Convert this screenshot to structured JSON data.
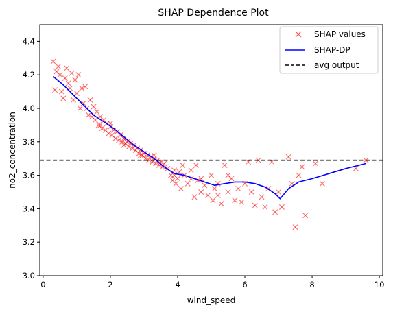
{
  "chart_data": {
    "type": "scatter",
    "title": "SHAP Dependence Plot",
    "xlabel": "wind_speed",
    "ylabel": "no2_concentration",
    "xlim": [
      -0.1,
      10.1
    ],
    "ylim": [
      3.0,
      4.5
    ],
    "x_ticks": [
      0,
      2,
      4,
      6,
      8,
      10
    ],
    "y_ticks": [
      3.0,
      3.2,
      3.4,
      3.6,
      3.8,
      4.0,
      4.2,
      4.4
    ],
    "x_tick_labels": [
      "0",
      "2",
      "4",
      "6",
      "8",
      "10"
    ],
    "y_tick_labels": [
      "3.0",
      "3.2",
      "3.4",
      "3.6",
      "3.8",
      "4.0",
      "4.2",
      "4.4"
    ],
    "grid": false,
    "legend_position": "top-right",
    "legend": [
      "SHAP values",
      "SHAP-DP",
      "avg output"
    ],
    "colors": {
      "scatter": "#ff0000",
      "line": "#0000ff",
      "avg": "#000000"
    },
    "series": [
      {
        "name": "SHAP values",
        "type": "scatter",
        "marker": "x",
        "points": [
          [
            0.3,
            4.28
          ],
          [
            0.35,
            4.11
          ],
          [
            0.4,
            4.22
          ],
          [
            0.45,
            4.25
          ],
          [
            0.5,
            4.2
          ],
          [
            0.55,
            4.1
          ],
          [
            0.6,
            4.06
          ],
          [
            0.65,
            4.18
          ],
          [
            0.7,
            4.24
          ],
          [
            0.75,
            4.15
          ],
          [
            0.8,
            4.12
          ],
          [
            0.85,
            4.21
          ],
          [
            0.9,
            4.05
          ],
          [
            0.95,
            4.17
          ],
          [
            1.0,
            4.09
          ],
          [
            1.05,
            4.2
          ],
          [
            1.1,
            4.0
          ],
          [
            1.15,
            4.12
          ],
          [
            1.2,
            4.03
          ],
          [
            1.25,
            4.13
          ],
          [
            1.3,
            4.0
          ],
          [
            1.35,
            3.96
          ],
          [
            1.4,
            4.05
          ],
          [
            1.45,
            3.95
          ],
          [
            1.5,
            4.01
          ],
          [
            1.55,
            3.93
          ],
          [
            1.6,
            3.98
          ],
          [
            1.65,
            3.9
          ],
          [
            1.7,
            3.95
          ],
          [
            1.75,
            3.88
          ],
          [
            1.8,
            3.93
          ],
          [
            1.85,
            3.87
          ],
          [
            1.9,
            3.91
          ],
          [
            1.95,
            3.85
          ],
          [
            2.0,
            3.89
          ],
          [
            2.05,
            3.84
          ],
          [
            2.1,
            3.87
          ],
          [
            2.15,
            3.82
          ],
          [
            2.2,
            3.86
          ],
          [
            2.25,
            3.81
          ],
          [
            2.3,
            3.84
          ],
          [
            2.35,
            3.8
          ],
          [
            2.4,
            3.82
          ],
          [
            2.45,
            3.79
          ],
          [
            2.5,
            3.8
          ],
          [
            2.55,
            3.77
          ],
          [
            2.6,
            3.79
          ],
          [
            2.65,
            3.76
          ],
          [
            2.7,
            3.78
          ],
          [
            2.75,
            3.75
          ],
          [
            2.8,
            3.76
          ],
          [
            2.85,
            3.73
          ],
          [
            2.9,
            3.75
          ],
          [
            2.95,
            3.72
          ],
          [
            3.0,
            3.73
          ],
          [
            3.05,
            3.7
          ],
          [
            3.1,
            3.72
          ],
          [
            3.15,
            3.69
          ],
          [
            3.2,
            3.71
          ],
          [
            3.25,
            3.68
          ],
          [
            3.3,
            3.7
          ],
          [
            3.35,
            3.67
          ],
          [
            3.4,
            3.69
          ],
          [
            3.45,
            3.66
          ],
          [
            3.5,
            3.68
          ],
          [
            3.55,
            3.65
          ],
          [
            3.6,
            3.67
          ],
          [
            3.7,
            3.64
          ],
          [
            3.8,
            3.6
          ],
          [
            3.85,
            3.57
          ],
          [
            3.9,
            3.63
          ],
          [
            3.95,
            3.55
          ],
          [
            4.0,
            3.58
          ],
          [
            4.05,
            3.62
          ],
          [
            4.1,
            3.52
          ],
          [
            4.15,
            3.66
          ],
          [
            4.2,
            3.6
          ],
          [
            4.3,
            3.55
          ],
          [
            4.4,
            3.63
          ],
          [
            4.5,
            3.47
          ],
          [
            4.55,
            3.66
          ],
          [
            4.6,
            3.57
          ],
          [
            4.7,
            3.5
          ],
          [
            4.8,
            3.54
          ],
          [
            4.9,
            3.48
          ],
          [
            5.0,
            3.6
          ],
          [
            5.05,
            3.45
          ],
          [
            5.1,
            3.52
          ],
          [
            5.2,
            3.55
          ],
          [
            5.3,
            3.43
          ],
          [
            5.4,
            3.66
          ],
          [
            5.5,
            3.5
          ],
          [
            5.6,
            3.58
          ],
          [
            5.7,
            3.45
          ],
          [
            5.8,
            3.52
          ],
          [
            5.9,
            3.44
          ],
          [
            6.0,
            3.55
          ],
          [
            6.1,
            3.68
          ],
          [
            6.2,
            3.5
          ],
          [
            6.3,
            3.42
          ],
          [
            6.4,
            3.69
          ],
          [
            6.5,
            3.47
          ],
          [
            6.6,
            3.41
          ],
          [
            6.7,
            3.52
          ],
          [
            6.8,
            3.68
          ],
          [
            6.9,
            3.38
          ],
          [
            7.0,
            3.5
          ],
          [
            7.1,
            3.41
          ],
          [
            7.3,
            3.71
          ],
          [
            7.4,
            3.55
          ],
          [
            7.5,
            3.29
          ],
          [
            7.6,
            3.6
          ],
          [
            7.7,
            3.65
          ],
          [
            7.8,
            3.36
          ],
          [
            8.1,
            3.67
          ],
          [
            8.3,
            3.55
          ],
          [
            9.3,
            3.64
          ],
          [
            9.6,
            3.69
          ],
          [
            1.7,
            3.9
          ],
          [
            2.0,
            3.91
          ],
          [
            2.4,
            3.78
          ],
          [
            2.9,
            3.72
          ],
          [
            3.3,
            3.72
          ],
          [
            3.9,
            3.6
          ],
          [
            4.4,
            3.58
          ],
          [
            4.7,
            3.58
          ],
          [
            5.2,
            3.48
          ],
          [
            5.5,
            3.6
          ]
        ]
      },
      {
        "name": "SHAP-DP",
        "type": "line",
        "points": [
          [
            0.3,
            4.19
          ],
          [
            0.6,
            4.14
          ],
          [
            0.9,
            4.08
          ],
          [
            1.2,
            4.02
          ],
          [
            1.5,
            3.96
          ],
          [
            1.8,
            3.92
          ],
          [
            2.1,
            3.88
          ],
          [
            2.4,
            3.83
          ],
          [
            2.7,
            3.78
          ],
          [
            3.0,
            3.74
          ],
          [
            3.3,
            3.7
          ],
          [
            3.6,
            3.65
          ],
          [
            3.9,
            3.61
          ],
          [
            4.2,
            3.6
          ],
          [
            4.5,
            3.58
          ],
          [
            4.8,
            3.56
          ],
          [
            5.1,
            3.54
          ],
          [
            5.4,
            3.55
          ],
          [
            5.7,
            3.56
          ],
          [
            6.0,
            3.56
          ],
          [
            6.3,
            3.55
          ],
          [
            6.6,
            3.53
          ],
          [
            6.9,
            3.49
          ],
          [
            7.05,
            3.46
          ],
          [
            7.3,
            3.52
          ],
          [
            7.6,
            3.56
          ],
          [
            8.0,
            3.58
          ],
          [
            8.5,
            3.61
          ],
          [
            9.0,
            3.64
          ],
          [
            9.6,
            3.67
          ]
        ]
      },
      {
        "name": "avg output",
        "type": "hline",
        "y": 3.69
      }
    ]
  }
}
